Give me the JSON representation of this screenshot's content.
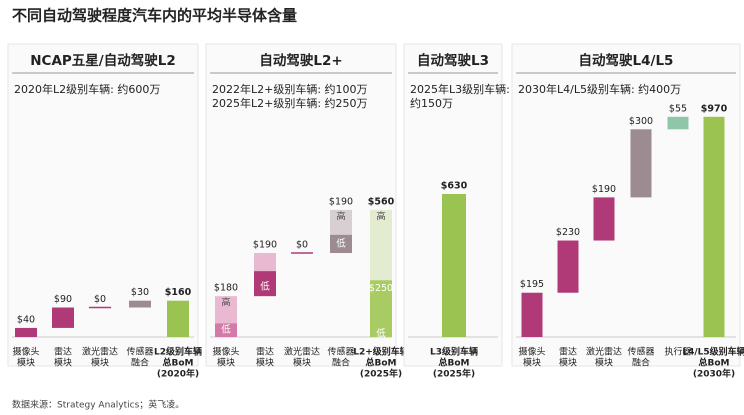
{
  "title": "不同自动驾驶程度汽车内的平均半导体含量",
  "footer": "数据来源：Strategy Analytics；英飞凌。",
  "chart_data": [
    {
      "type": "waterfall",
      "title": "NCAP五星/自动驾驶L2",
      "subtitle": [
        "2020年L2级别车辆: 约600万"
      ],
      "categories": [
        [
          "摄像头",
          "模块"
        ],
        [
          "雷达",
          "模块"
        ],
        [
          "激光雷达",
          "模块"
        ],
        [
          "传感器",
          "融合"
        ],
        [
          "L2级别车辆",
          "总BoM",
          "(2020年)"
        ]
      ],
      "values": [
        40,
        90,
        0,
        30,
        160
      ],
      "value_labels": [
        "$40",
        "$90",
        "$0",
        "$30",
        "$160"
      ],
      "colors": [
        "#b03a78",
        "#b03a78",
        "#b03a78",
        "#9c8b90",
        "#9bc352"
      ]
    },
    {
      "type": "waterfall",
      "title": "自动驾驶L2+",
      "subtitle": [
        "2022年L2+级别车辆: 约100万",
        "2025年L2+级别车辆: 约250万"
      ],
      "categories": [
        [
          "摄像头",
          "模块"
        ],
        [
          "雷达",
          "模块"
        ],
        [
          "激光雷达",
          "模块"
        ],
        [
          "传感器",
          "融合"
        ],
        [
          "L2+级别车辆",
          "总BoM",
          "(2025年)"
        ]
      ],
      "values": [
        180,
        190,
        0,
        190,
        560
      ],
      "value_labels": [
        "$180",
        "$190",
        "$0",
        "$190",
        "$560"
      ],
      "colors": [
        "#e9b9d2",
        "#e9b9d2",
        "#b03a78",
        "#d8cfd2",
        "#e3ecd0"
      ],
      "low_values": [
        60,
        110,
        0,
        80,
        250
      ],
      "low_value_labels": [
        null,
        null,
        null,
        null,
        "$250"
      ],
      "low_colors": [
        "#d37aa8",
        "#b03a78",
        "#b03a78",
        "#9c8b90",
        "#a9cb63"
      ],
      "high_label": "高",
      "low_label": "低"
    },
    {
      "type": "waterfall",
      "title": "自动驾驶L3",
      "subtitle": [
        "2025年L3级别车辆:",
        "约150万"
      ],
      "categories": [
        [
          "L3级别车辆",
          "总BoM",
          "(2025年)"
        ]
      ],
      "values": [
        630
      ],
      "value_labels": [
        "$630"
      ],
      "colors": [
        "#9bc352"
      ]
    },
    {
      "type": "waterfall",
      "title": "自动驾驶L4/L5",
      "subtitle": [
        "2030年L4/L5级别车辆: 约400万"
      ],
      "categories": [
        [
          "摄像头",
          "模块"
        ],
        [
          "雷达",
          "模块"
        ],
        [
          "激光雷达",
          "模块"
        ],
        [
          "传感器",
          "融合"
        ],
        [
          "执行器"
        ],
        [
          "L4/L5级别车辆",
          "总BoM",
          "(2030年)"
        ]
      ],
      "values": [
        195,
        230,
        190,
        300,
        55,
        970
      ],
      "value_labels": [
        "$195",
        "$230",
        "$190",
        "$300",
        "$55",
        "$970"
      ],
      "colors": [
        "#b03a78",
        "#b03a78",
        "#b03a78",
        "#9c8b90",
        "#8fc6aa",
        "#9bc352"
      ]
    }
  ]
}
